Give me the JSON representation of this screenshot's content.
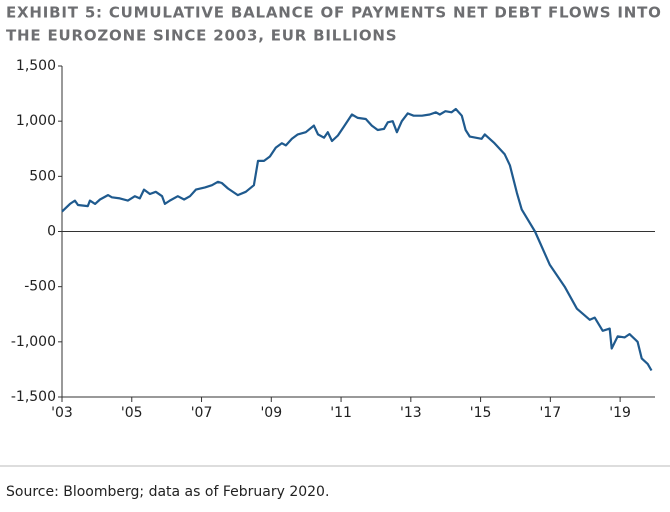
{
  "chart_data": {
    "type": "line",
    "title": [
      "EXHIBIT 5: CUMULATIVE BALANCE OF PAYMENTS NET DEBT FLOWS INTO",
      "THE EUROZONE SINCE 2003, EUR BILLIONS"
    ],
    "source": "Source: Bloomberg; data as of February 2020.",
    "series": [
      {
        "name": "Cumulative net debt flows",
        "color": "#1f5a8e",
        "x": [
          2003.0,
          2003.23,
          2003.37,
          2003.46,
          2003.74,
          2003.8,
          2003.95,
          2004.09,
          2004.32,
          2004.43,
          2004.66,
          2004.89,
          2005.09,
          2005.23,
          2005.35,
          2005.52,
          2005.69,
          2005.87,
          2005.95,
          2006.09,
          2006.32,
          2006.5,
          2006.67,
          2006.84,
          2007.1,
          2007.3,
          2007.47,
          2007.58,
          2007.76,
          2008.04,
          2008.27,
          2008.5,
          2008.62,
          2008.79,
          2008.96,
          2009.13,
          2009.3,
          2009.42,
          2009.59,
          2009.76,
          2009.99,
          2010.22,
          2010.34,
          2010.51,
          2010.62,
          2010.74,
          2010.91,
          2011.08,
          2011.31,
          2011.48,
          2011.71,
          2011.88,
          2012.05,
          2012.23,
          2012.34,
          2012.48,
          2012.6,
          2012.74,
          2012.91,
          2013.08,
          2013.32,
          2013.54,
          2013.72,
          2013.83,
          2013.99,
          2014.17,
          2014.29,
          2014.46,
          2014.57,
          2014.69,
          2015.03,
          2015.12,
          2015.4,
          2015.69,
          2015.84,
          2016.04,
          2016.18,
          2016.56,
          2016.7,
          2016.98,
          2017.41,
          2017.76,
          2018.13,
          2018.27,
          2018.5,
          2018.7,
          2018.76,
          2018.93,
          2019.13,
          2019.27,
          2019.5,
          2019.62,
          2019.79,
          2019.9
        ],
        "values": [
          180,
          250,
          280,
          240,
          230,
          280,
          250,
          290,
          330,
          310,
          300,
          280,
          320,
          300,
          380,
          340,
          360,
          320,
          250,
          280,
          320,
          290,
          320,
          380,
          400,
          420,
          450,
          440,
          390,
          330,
          360,
          420,
          640,
          640,
          680,
          760,
          800,
          780,
          840,
          880,
          900,
          960,
          880,
          850,
          900,
          820,
          870,
          950,
          1060,
          1030,
          1020,
          960,
          920,
          930,
          990,
          1000,
          900,
          1000,
          1070,
          1050,
          1050,
          1060,
          1080,
          1060,
          1090,
          1080,
          1110,
          1050,
          920,
          860,
          840,
          880,
          800,
          700,
          600,
          350,
          200,
          0,
          -100,
          -300,
          -500,
          -700,
          -800,
          -780,
          -900,
          -880,
          -1060,
          -950,
          -960,
          -930,
          -1000,
          -1150,
          -1200,
          -1260
        ]
      }
    ],
    "xlim": [
      2003,
      2020
    ],
    "xticks": [
      {
        "value": 2003,
        "label": "'03"
      },
      {
        "value": 2005,
        "label": "'05"
      },
      {
        "value": 2007,
        "label": "'07"
      },
      {
        "value": 2009,
        "label": "'09"
      },
      {
        "value": 2011,
        "label": "'11"
      },
      {
        "value": 2013,
        "label": "'13"
      },
      {
        "value": 2015,
        "label": "'15"
      },
      {
        "value": 2017,
        "label": "'17"
      },
      {
        "value": 2019,
        "label": "'19"
      }
    ],
    "ylim": [
      -1500,
      1500
    ],
    "yticks": [
      {
        "value": 1500,
        "label": "1,500"
      },
      {
        "value": 1000,
        "label": "1,000"
      },
      500,
      0,
      -500,
      {
        "value": -1000,
        "label": "-1,000"
      },
      {
        "value": -1500,
        "label": "-1,500"
      }
    ],
    "grid": false
  }
}
